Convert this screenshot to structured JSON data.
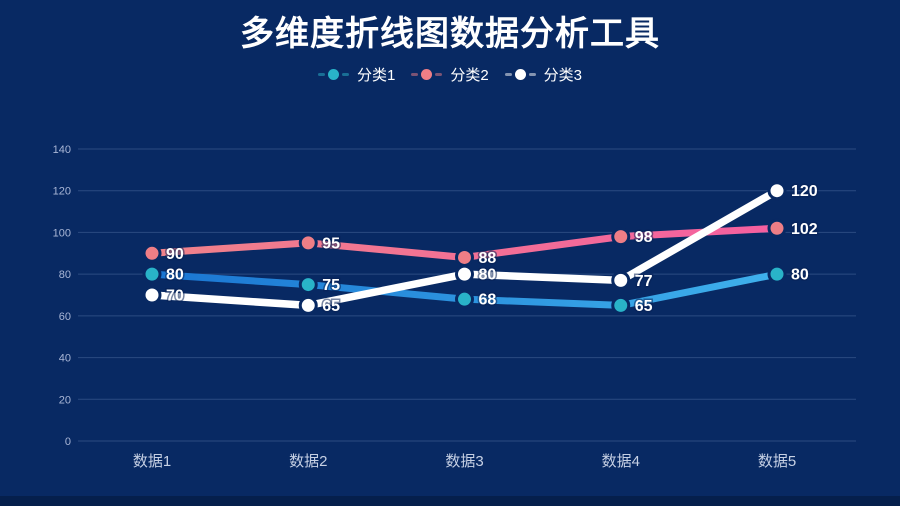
{
  "page": {
    "title": "多维度折线图数据分析工具"
  },
  "colors": {
    "background": "#082963",
    "footer_strip": "#051f4c",
    "grid": "rgba(170,195,235,0.22)",
    "axis_tick_text": "#a9b6d6",
    "category_text": "#c6d0e4",
    "value_label_text": "#ffffff",
    "title_text": "#ffffff"
  },
  "chart_data": {
    "type": "line",
    "title": "多维度折线图数据分析工具",
    "categories": [
      "数据1",
      "数据2",
      "数据3",
      "数据4",
      "数据5"
    ],
    "series": [
      {
        "name": "分类1",
        "values": [
          80,
          75,
          68,
          65,
          80
        ],
        "line_color": "#2196f3",
        "line_gradient": [
          "#1a75d2",
          "#3fb1ec"
        ],
        "dot_color": "#29b3c8",
        "line_width": 7
      },
      {
        "name": "分类2",
        "values": [
          90,
          95,
          88,
          98,
          102
        ],
        "line_color": "#f3759a",
        "line_gradient": [
          "#ef828a",
          "#f55fa0"
        ],
        "dot_color": "#ee7e86",
        "line_width": 7
      },
      {
        "name": "分类3",
        "values": [
          70,
          65,
          80,
          77,
          120
        ],
        "line_color": "#ffffff",
        "dot_color": "#ffffff",
        "line_width": 7.5
      }
    ],
    "ylim": [
      0,
      140
    ],
    "yticks": [
      0,
      20,
      40,
      60,
      80,
      100,
      120,
      140
    ],
    "grid": "horizontal",
    "legend_position": "top",
    "data_labels": true,
    "xlabel": "",
    "ylabel": ""
  }
}
